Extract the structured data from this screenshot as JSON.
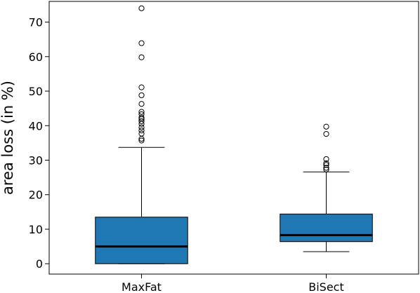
{
  "chart_data": {
    "type": "box",
    "title": "",
    "xlabel": "",
    "ylabel": "area loss (in %)",
    "ylim": [
      -3,
      76
    ],
    "yticks": [
      0,
      10,
      20,
      30,
      40,
      50,
      60,
      70
    ],
    "grid": false,
    "box_color": "#1f77b4",
    "median_color": "#000000",
    "categories": [
      "MaxFat",
      "BiSect"
    ],
    "boxes": [
      {
        "name": "MaxFat",
        "whisker_low": 0,
        "q1": 0,
        "median": 5,
        "q3": 13.5,
        "whisker_high": 33.7,
        "outliers": [
          35.7,
          36.2,
          37.7,
          38.6,
          39.5,
          40.5,
          41.3,
          41.9,
          42.3,
          43.3,
          44,
          46.3,
          48.8,
          51.1,
          59.8,
          63.9,
          74
        ]
      },
      {
        "name": "BiSect",
        "whisker_low": 3.5,
        "q1": 6.4,
        "median": 8.3,
        "q3": 14.4,
        "whisker_high": 26.6,
        "outliers": [
          27.3,
          27.8,
          28.6,
          29.1,
          30.3,
          37.6,
          39.7
        ]
      }
    ]
  }
}
